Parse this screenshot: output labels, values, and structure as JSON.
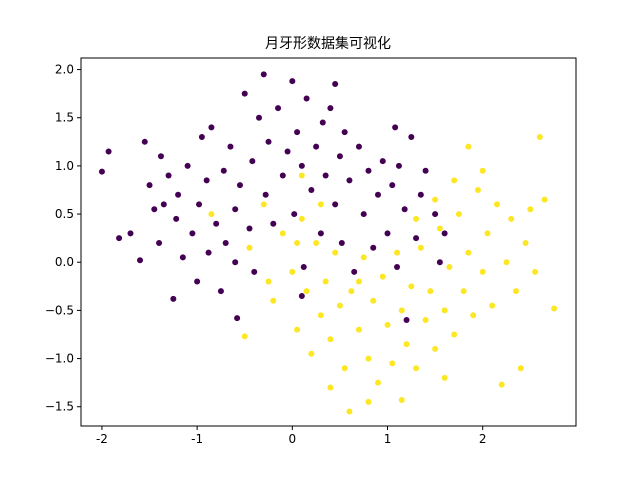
{
  "chart_data": {
    "type": "scatter",
    "title": "月牙形数据集可视化",
    "xlim": [
      -2.22,
      2.98
    ],
    "ylim": [
      -1.7,
      2.12
    ],
    "xticks": [
      -2,
      -1,
      0,
      1,
      2
    ],
    "yticks": [
      {
        "value": 2,
        "label": "2.0"
      },
      {
        "value": 1.5,
        "label": "1.5"
      },
      {
        "value": 1,
        "label": "1.0"
      },
      {
        "value": 0.5,
        "label": "0.5"
      },
      {
        "value": 0,
        "label": "0.0"
      },
      {
        "value": -0.5,
        "label": "−0.5"
      },
      {
        "value": -1,
        "label": "−1.0"
      },
      {
        "value": -1.5,
        "label": "−1.5"
      }
    ],
    "series": [
      {
        "color": "#440154",
        "x": [
          -2.0,
          -1.93,
          -1.82,
          -1.7,
          -1.6,
          -1.55,
          -1.5,
          -1.45,
          -1.4,
          -1.38,
          -1.3,
          -1.25,
          -1.22,
          -1.2,
          -1.15,
          -1.1,
          -1.05,
          -1.0,
          -0.98,
          -0.95,
          -0.9,
          -0.88,
          -0.85,
          -0.8,
          -0.75,
          -0.72,
          -0.7,
          -0.65,
          -0.6,
          -0.58,
          -0.55,
          -0.5,
          -0.45,
          -0.42,
          -0.4,
          -0.35,
          -0.3,
          -0.28,
          -0.25,
          -0.2,
          -0.15,
          -0.1,
          -0.05,
          0.0,
          0.02,
          0.05,
          0.1,
          0.12,
          0.15,
          0.2,
          0.25,
          0.3,
          0.32,
          0.35,
          0.4,
          0.45,
          0.5,
          0.52,
          0.55,
          0.6,
          0.65,
          0.7,
          0.75,
          0.8,
          0.85,
          0.9,
          0.95,
          1.0,
          1.05,
          1.1,
          1.12,
          1.18,
          1.2,
          1.25,
          1.3,
          1.35,
          1.4,
          1.5,
          1.6,
          1.55,
          0.1,
          -0.6,
          -1.35,
          0.45,
          1.08
        ],
        "y": [
          0.94,
          1.15,
          0.25,
          0.3,
          0.02,
          1.25,
          0.8,
          0.55,
          0.2,
          1.1,
          0.9,
          -0.38,
          0.45,
          0.7,
          0.05,
          1.0,
          0.3,
          -0.2,
          0.6,
          1.3,
          0.85,
          0.1,
          1.4,
          0.4,
          -0.3,
          0.95,
          0.2,
          1.2,
          0.55,
          -0.58,
          0.8,
          1.75,
          0.35,
          1.05,
          -0.1,
          1.5,
          1.95,
          0.7,
          1.25,
          0.4,
          1.6,
          0.9,
          1.15,
          1.88,
          0.5,
          1.35,
          1.0,
          -0.05,
          1.7,
          0.75,
          1.2,
          0.3,
          1.45,
          0.9,
          1.6,
          0.6,
          1.1,
          0.2,
          1.35,
          0.85,
          -0.1,
          1.2,
          0.5,
          0.95,
          0.15,
          0.7,
          1.05,
          0.3,
          0.8,
          -0.05,
          1.0,
          0.55,
          -0.6,
          1.3,
          0.25,
          0.7,
          0.95,
          0.5,
          0.3,
          0.0,
          -0.35,
          0.0,
          0.6,
          1.85,
          1.4
        ]
      },
      {
        "color": "#fde725",
        "x": [
          -0.85,
          -0.5,
          -0.45,
          -0.3,
          -0.25,
          -0.2,
          -0.1,
          0.0,
          0.05,
          0.1,
          0.15,
          0.2,
          0.25,
          0.3,
          0.35,
          0.4,
          0.45,
          0.5,
          0.55,
          0.6,
          0.62,
          0.7,
          0.75,
          0.8,
          0.85,
          0.9,
          0.95,
          1.0,
          1.05,
          1.1,
          1.15,
          1.2,
          1.25,
          1.3,
          1.35,
          1.4,
          1.45,
          1.5,
          1.55,
          1.6,
          1.65,
          1.7,
          1.75,
          1.8,
          1.85,
          1.9,
          1.95,
          2.0,
          2.05,
          2.1,
          2.15,
          2.2,
          2.25,
          2.3,
          2.35,
          2.4,
          2.45,
          2.5,
          2.55,
          2.6,
          2.65,
          2.75,
          2.0,
          1.85,
          1.7,
          1.5,
          1.3,
          0.3,
          0.1,
          0.8,
          1.6,
          0.4,
          1.15,
          0.7,
          0.05
        ],
        "y": [
          0.5,
          -0.77,
          0.15,
          0.6,
          -0.2,
          -0.4,
          0.3,
          -0.1,
          -0.7,
          0.45,
          -0.3,
          -0.95,
          0.2,
          -0.55,
          -0.2,
          -0.8,
          0.1,
          -0.45,
          -1.1,
          -1.55,
          -0.3,
          -0.7,
          0.05,
          -1.0,
          -0.4,
          -1.25,
          -0.15,
          -0.65,
          -1.05,
          0.1,
          -0.5,
          -0.85,
          -0.25,
          -1.1,
          0.15,
          -0.6,
          -0.3,
          -0.9,
          0.35,
          -0.5,
          -0.05,
          -0.75,
          0.5,
          -0.3,
          0.1,
          -0.55,
          0.75,
          -0.1,
          0.3,
          -0.45,
          0.6,
          -1.27,
          0.0,
          0.45,
          -0.3,
          -1.1,
          0.2,
          0.55,
          -0.1,
          1.3,
          0.65,
          -0.48,
          0.95,
          1.2,
          0.85,
          0.65,
          0.45,
          0.6,
          0.9,
          -1.45,
          -1.2,
          -1.3,
          -1.43,
          -0.2,
          0.2
        ]
      }
    ]
  }
}
